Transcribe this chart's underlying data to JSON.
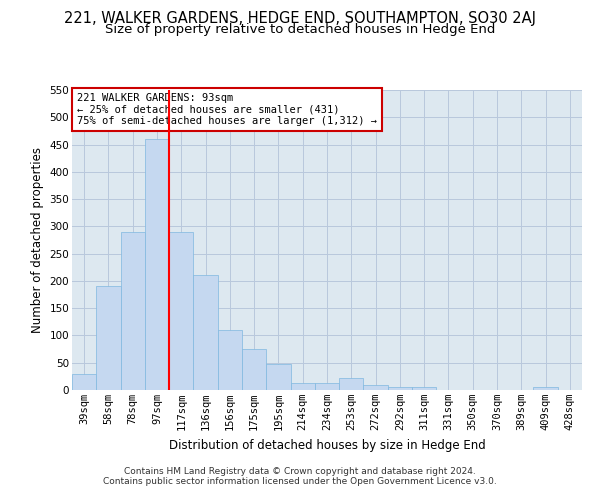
{
  "title": "221, WALKER GARDENS, HEDGE END, SOUTHAMPTON, SO30 2AJ",
  "subtitle": "Size of property relative to detached houses in Hedge End",
  "xlabel": "Distribution of detached houses by size in Hedge End",
  "ylabel": "Number of detached properties",
  "categories": [
    "39sqm",
    "58sqm",
    "78sqm",
    "97sqm",
    "117sqm",
    "136sqm",
    "156sqm",
    "175sqm",
    "195sqm",
    "214sqm",
    "234sqm",
    "253sqm",
    "272sqm",
    "292sqm",
    "311sqm",
    "331sqm",
    "350sqm",
    "370sqm",
    "389sqm",
    "409sqm",
    "428sqm"
  ],
  "values": [
    30,
    190,
    290,
    460,
    290,
    210,
    110,
    75,
    47,
    13,
    12,
    22,
    10,
    5,
    6,
    0,
    0,
    0,
    0,
    5,
    0
  ],
  "bar_color": "#c5d8f0",
  "bar_edge_color": "#7fb8df",
  "grid_color": "#b8c8dc",
  "bg_color": "#dde8f0",
  "red_line_x": 3.5,
  "annotation_text": "221 WALKER GARDENS: 93sqm\n← 25% of detached houses are smaller (431)\n75% of semi-detached houses are larger (1,312) →",
  "annotation_box_color": "#ffffff",
  "annotation_box_edge": "#cc0000",
  "footer_line1": "Contains HM Land Registry data © Crown copyright and database right 2024.",
  "footer_line2": "Contains public sector information licensed under the Open Government Licence v3.0.",
  "ylim": [
    0,
    550
  ],
  "yticks": [
    0,
    50,
    100,
    150,
    200,
    250,
    300,
    350,
    400,
    450,
    500,
    550
  ],
  "title_fontsize": 10.5,
  "subtitle_fontsize": 9.5,
  "axis_label_fontsize": 8.5,
  "tick_fontsize": 7.5,
  "footer_fontsize": 6.5
}
